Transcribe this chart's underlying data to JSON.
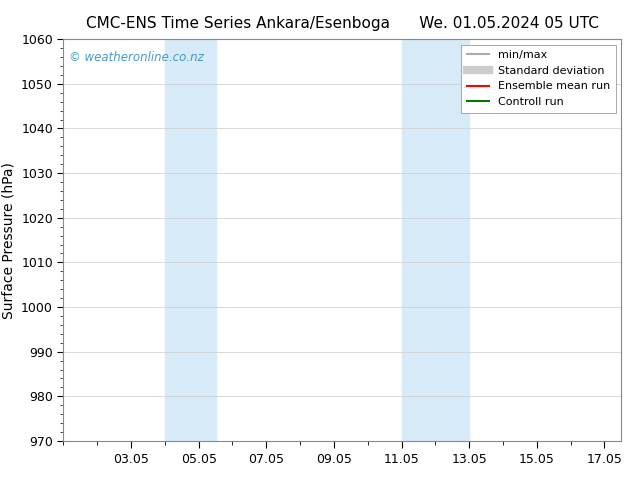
{
  "title_left": "CMC-ENS Time Series Ankara/Esenboga",
  "title_right": "We. 01.05.2024 05 UTC",
  "ylabel": "Surface Pressure (hPa)",
  "ylim": [
    970,
    1060
  ],
  "yticks": [
    970,
    980,
    990,
    1000,
    1010,
    1020,
    1030,
    1040,
    1050,
    1060
  ],
  "xlim": [
    1.0,
    17.5
  ],
  "xtick_labels": [
    "03.05",
    "05.05",
    "07.05",
    "09.05",
    "11.05",
    "13.05",
    "15.05",
    "17.05"
  ],
  "xtick_positions": [
    3,
    5,
    7,
    9,
    11,
    13,
    15,
    17
  ],
  "shaded_bands": [
    {
      "xmin": 4.0,
      "xmax": 5.5
    },
    {
      "xmin": 11.0,
      "xmax": 13.0
    }
  ],
  "shaded_color": "#d6eaf8",
  "watermark_text": "© weatheronline.co.nz",
  "watermark_color": "#4499cc",
  "background_color": "#ffffff",
  "plot_bg_color": "#ffffff",
  "grid_color": "#cccccc",
  "legend_entries": [
    {
      "label": "min/max",
      "color": "#aaaaaa",
      "lw": 1.5
    },
    {
      "label": "Standard deviation",
      "color": "#cccccc",
      "lw": 6
    },
    {
      "label": "Ensemble mean run",
      "color": "#ff0000",
      "lw": 1.5
    },
    {
      "label": "Controll run",
      "color": "#007700",
      "lw": 1.5
    }
  ],
  "title_fontsize": 11,
  "tick_fontsize": 9,
  "ylabel_fontsize": 10,
  "legend_fontsize": 8
}
